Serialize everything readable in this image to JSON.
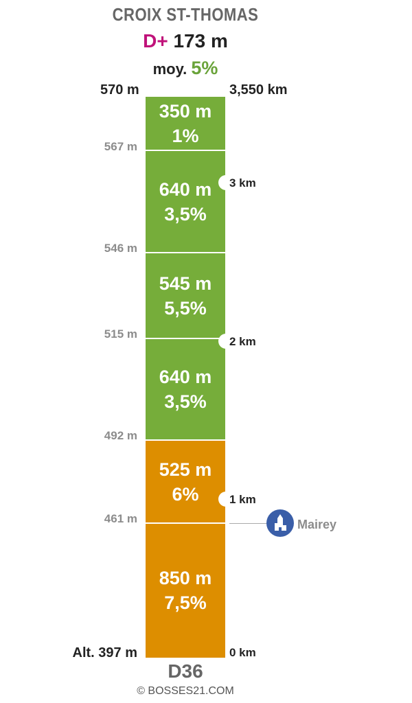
{
  "header": {
    "title": "CROIX ST-THOMAS",
    "dplus_label": "D+",
    "dplus_value": "173 m",
    "avg_label": "moy.",
    "avg_value": "5%"
  },
  "summit": {
    "altitude": "570 m",
    "distance": "3,550 km"
  },
  "base": {
    "altitude": "Alt. 397 m",
    "distance": "0 km"
  },
  "colors": {
    "green": "#76ad3a",
    "orange": "#dd8e00",
    "dplus": "#c0127a",
    "avg": "#6aa33a",
    "poi": "#3a5ea8"
  },
  "segments": [
    {
      "length": "350 m",
      "gradient": "1%",
      "color": "green"
    },
    {
      "length": "640 m",
      "gradient": "3,5%",
      "color": "green"
    },
    {
      "length": "545 m",
      "gradient": "5,5%",
      "color": "green"
    },
    {
      "length": "640 m",
      "gradient": "3,5%",
      "color": "green"
    },
    {
      "length": "525 m",
      "gradient": "6%",
      "color": "orange"
    },
    {
      "length": "850 m",
      "gradient": "7,5%",
      "color": "orange"
    }
  ],
  "altitudes": [
    "567 m",
    "546 m",
    "515 m",
    "492 m",
    "461 m"
  ],
  "km_markers": [
    "3 km",
    "2 km",
    "1 km"
  ],
  "poi": {
    "name": "Mairey",
    "icon": "church-icon"
  },
  "road": "D36",
  "credit": "© BOSSES21.COM"
}
